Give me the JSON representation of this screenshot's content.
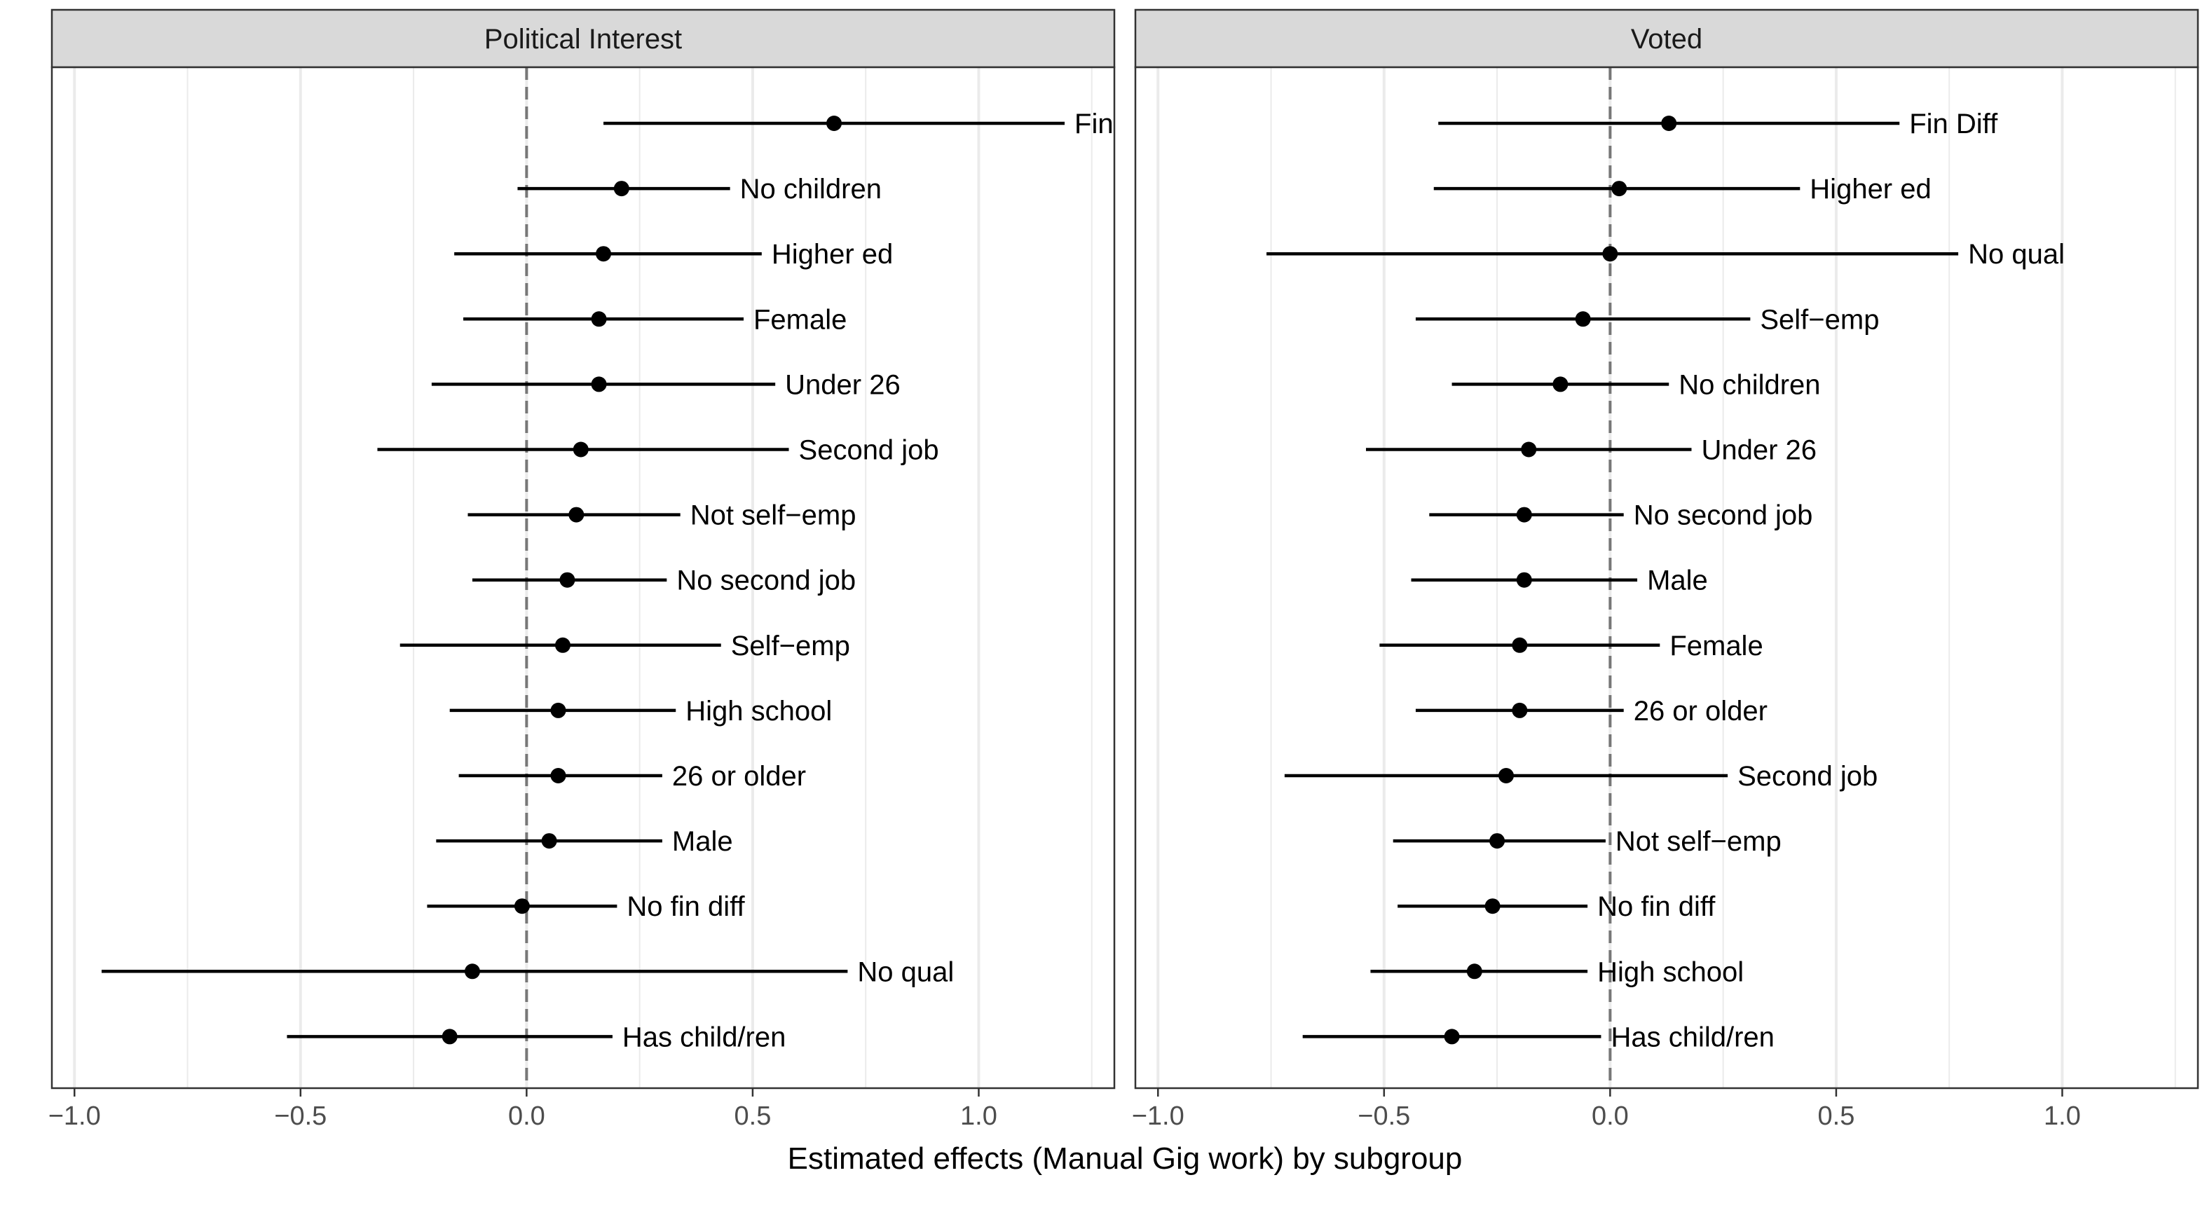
{
  "chart_data": {
    "type": "scatter",
    "xlabel": "Estimated effects (Manual Gig work) by subgroup",
    "xlim": [
      -1.05,
      1.3
    ],
    "xticks": [
      -1.0,
      -0.5,
      0.0,
      0.5,
      1.0
    ],
    "xtick_labels": [
      "−1.0",
      "−0.5",
      "0.0",
      "0.5",
      "1.0"
    ],
    "reference_line": 0.0,
    "grid": true,
    "panels": [
      {
        "title": "Political Interest",
        "points": [
          {
            "label": "Fin",
            "estimate": 0.68,
            "lower": 0.17,
            "upper": 1.19
          },
          {
            "label": "No children",
            "estimate": 0.21,
            "lower": -0.02,
            "upper": 0.45
          },
          {
            "label": "Higher ed",
            "estimate": 0.17,
            "lower": -0.16,
            "upper": 0.52
          },
          {
            "label": "Female",
            "estimate": 0.16,
            "lower": -0.14,
            "upper": 0.48
          },
          {
            "label": "Under 26",
            "estimate": 0.16,
            "lower": -0.21,
            "upper": 0.55
          },
          {
            "label": "Second job",
            "estimate": 0.12,
            "lower": -0.33,
            "upper": 0.58
          },
          {
            "label": "Not self−emp",
            "estimate": 0.11,
            "lower": -0.13,
            "upper": 0.34
          },
          {
            "label": "No second job",
            "estimate": 0.09,
            "lower": -0.12,
            "upper": 0.31
          },
          {
            "label": "Self−emp",
            "estimate": 0.08,
            "lower": -0.28,
            "upper": 0.43
          },
          {
            "label": "High school",
            "estimate": 0.07,
            "lower": -0.17,
            "upper": 0.33
          },
          {
            "label": "26 or older",
            "estimate": 0.07,
            "lower": -0.15,
            "upper": 0.3
          },
          {
            "label": "Male",
            "estimate": 0.05,
            "lower": -0.2,
            "upper": 0.3
          },
          {
            "label": "No fin diff",
            "estimate": -0.01,
            "lower": -0.22,
            "upper": 0.2
          },
          {
            "label": "No qual",
            "estimate": -0.12,
            "lower": -0.94,
            "upper": 0.71
          },
          {
            "label": "Has child/ren",
            "estimate": -0.17,
            "lower": -0.53,
            "upper": 0.19
          }
        ]
      },
      {
        "title": "Voted",
        "points": [
          {
            "label": "Fin Diff",
            "estimate": 0.13,
            "lower": -0.38,
            "upper": 0.64
          },
          {
            "label": "Higher ed",
            "estimate": 0.02,
            "lower": -0.39,
            "upper": 0.42
          },
          {
            "label": "No qual",
            "estimate": 0.0,
            "lower": -0.76,
            "upper": 0.77
          },
          {
            "label": "Self−emp",
            "estimate": -0.06,
            "lower": -0.43,
            "upper": 0.31
          },
          {
            "label": "No children",
            "estimate": -0.11,
            "lower": -0.35,
            "upper": 0.13
          },
          {
            "label": "Under 26",
            "estimate": -0.18,
            "lower": -0.54,
            "upper": 0.18
          },
          {
            "label": "No second job",
            "estimate": -0.19,
            "lower": -0.4,
            "upper": 0.03
          },
          {
            "label": "Male",
            "estimate": -0.19,
            "lower": -0.44,
            "upper": 0.06
          },
          {
            "label": "Female",
            "estimate": -0.2,
            "lower": -0.51,
            "upper": 0.11
          },
          {
            "label": "26 or older",
            "estimate": -0.2,
            "lower": -0.43,
            "upper": 0.03
          },
          {
            "label": "Second job",
            "estimate": -0.23,
            "lower": -0.72,
            "upper": 0.26
          },
          {
            "label": "Not self−emp",
            "estimate": -0.25,
            "lower": -0.48,
            "upper": -0.01
          },
          {
            "label": "No fin diff",
            "estimate": -0.26,
            "lower": -0.47,
            "upper": -0.05
          },
          {
            "label": "High school",
            "estimate": -0.3,
            "lower": -0.53,
            "upper": -0.05
          },
          {
            "label": "Has child/ren",
            "estimate": -0.35,
            "lower": -0.68,
            "upper": -0.02
          }
        ]
      }
    ]
  }
}
